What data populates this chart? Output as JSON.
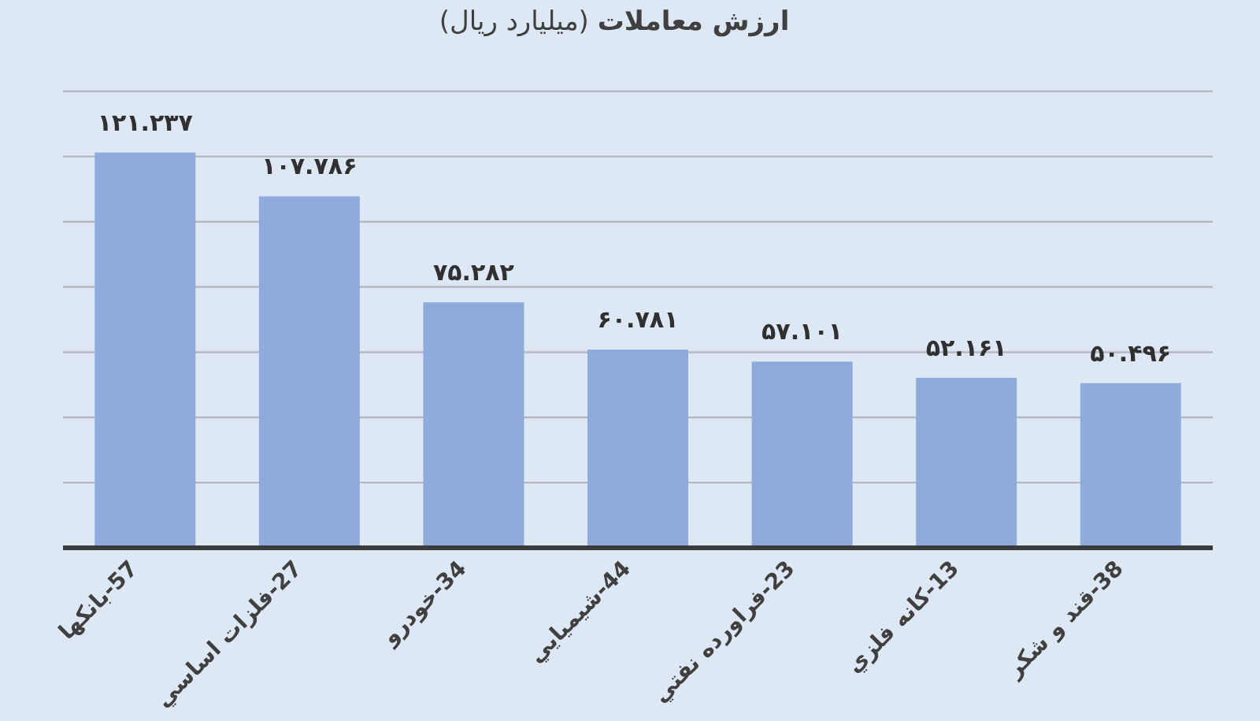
{
  "chart_data": {
    "type": "bar",
    "title": "**ارزش معاملات** (میلیارد ریال)",
    "categories": [
      "57-بانکها",
      "27-فلزات اساسي",
      "34-خودرو",
      "44-شیمیایي",
      "23-فراورده نفتي",
      "13-کانه فلزي",
      "38-قند و شکر"
    ],
    "values": [
      121.237,
      107.786,
      75.282,
      60.781,
      57.101,
      52.161,
      50.496
    ],
    "value_labels": [
      "۱۲۱.۲۳۷",
      "۱۰۷.۷۸۶",
      "۷۵.۲۸۲",
      "۶۰.۷۸۱",
      "۵۷.۱۰۱",
      "۵۲.۱۶۱",
      "۵۰.۴۹۶"
    ],
    "color": "#8faadc",
    "ylim": [
      0,
      140
    ],
    "yticks": [
      {
        "value": 0,
        "label": null
      },
      {
        "value": 20,
        "label": null
      },
      {
        "value": 40,
        "label": null
      },
      {
        "value": 60,
        "label": null
      },
      {
        "value": 80,
        "label": null
      },
      {
        "value": 100,
        "label": null
      },
      {
        "value": 120,
        "label": null
      },
      {
        "value": 140,
        "label": null
      }
    ],
    "tick_labels": "x",
    "grid": "y"
  }
}
